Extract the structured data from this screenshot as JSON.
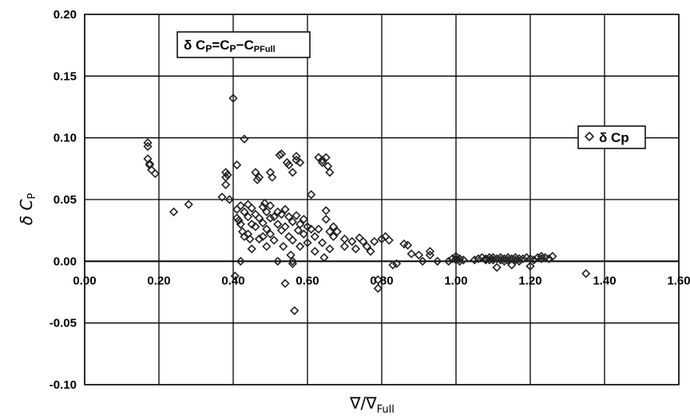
{
  "chart_data": {
    "type": "scatter",
    "xlabel": "∇/∇",
    "xlabel_sub": "Full",
    "ylabel": "δ C",
    "ylabel_sub": "P",
    "xlim": [
      0.0,
      1.6
    ],
    "ylim": [
      -0.1,
      0.2
    ],
    "xticks": [
      0.0,
      0.2,
      0.4,
      0.6,
      0.8,
      1.0,
      1.2,
      1.4,
      1.6
    ],
    "yticks": [
      -0.1,
      -0.05,
      0.0,
      0.05,
      0.1,
      0.15,
      0.2
    ],
    "xtick_labels": [
      "0.00",
      "0.20",
      "0.40",
      "0.60",
      "0.80",
      "1.00",
      "1.20",
      "1.40",
      "1.60"
    ],
    "ytick_labels": [
      "-0.10",
      "-0.05",
      "0.00",
      "0.05",
      "0.10",
      "0.15",
      "0.20"
    ],
    "grid": true,
    "marker_color": "#222222",
    "annotation": {
      "text_a": "δ C",
      "sub_a": "P",
      "text_b": "=C",
      "sub_b": "P",
      "text_c": "−C",
      "sub_c": "PFull"
    },
    "legend": {
      "position": "right",
      "label": "δ Cp",
      "marker": "diamond-open"
    },
    "series": [
      {
        "name": "δ Cp",
        "points": [
          [
            0.17,
            0.096
          ],
          [
            0.17,
            0.093
          ],
          [
            0.17,
            0.083
          ],
          [
            0.175,
            0.079
          ],
          [
            0.18,
            0.074
          ],
          [
            0.19,
            0.071
          ],
          [
            0.175,
            0.078
          ],
          [
            0.24,
            0.04
          ],
          [
            0.28,
            0.046
          ],
          [
            0.37,
            0.052
          ],
          [
            0.38,
            0.062
          ],
          [
            0.38,
            0.068
          ],
          [
            0.38,
            0.072
          ],
          [
            0.385,
            0.07
          ],
          [
            0.39,
            0.05
          ],
          [
            0.4,
            0.132
          ],
          [
            0.405,
            -0.012
          ],
          [
            0.41,
            0.078
          ],
          [
            0.41,
            0.042
          ],
          [
            0.41,
            0.035
          ],
          [
            0.415,
            0.033
          ],
          [
            0.42,
            0.045
          ],
          [
            0.42,
            0.03
          ],
          [
            0.42,
            0.0
          ],
          [
            0.425,
            0.024
          ],
          [
            0.43,
            0.04
          ],
          [
            0.43,
            0.02
          ],
          [
            0.43,
            0.099
          ],
          [
            0.44,
            0.046
          ],
          [
            0.44,
            0.036
          ],
          [
            0.44,
            0.022
          ],
          [
            0.445,
            0.018
          ],
          [
            0.45,
            0.043
          ],
          [
            0.45,
            0.03
          ],
          [
            0.45,
            0.01
          ],
          [
            0.46,
            0.072
          ],
          [
            0.46,
            0.038
          ],
          [
            0.46,
            0.028
          ],
          [
            0.465,
            0.066
          ],
          [
            0.47,
            0.035
          ],
          [
            0.47,
            0.018
          ],
          [
            0.47,
            0.068
          ],
          [
            0.48,
            0.044
          ],
          [
            0.48,
            0.031
          ],
          [
            0.48,
            0.02
          ],
          [
            0.485,
            0.047
          ],
          [
            0.49,
            0.04
          ],
          [
            0.49,
            0.026
          ],
          [
            0.49,
            0.012
          ],
          [
            0.5,
            0.072
          ],
          [
            0.5,
            0.045
          ],
          [
            0.5,
            0.035
          ],
          [
            0.5,
            0.022
          ],
          [
            0.505,
            0.068
          ],
          [
            0.51,
            0.036
          ],
          [
            0.51,
            0.017
          ],
          [
            0.52,
            0.04
          ],
          [
            0.52,
            0.03
          ],
          [
            0.52,
            0.0
          ],
          [
            0.525,
            0.086
          ],
          [
            0.53,
            0.087
          ],
          [
            0.53,
            0.038
          ],
          [
            0.53,
            0.025
          ],
          [
            0.535,
            0.012
          ],
          [
            0.54,
            0.042
          ],
          [
            0.54,
            0.028
          ],
          [
            0.54,
            -0.018
          ],
          [
            0.545,
            0.08
          ],
          [
            0.55,
            0.078
          ],
          [
            0.55,
            0.036
          ],
          [
            0.55,
            0.02
          ],
          [
            0.555,
            0.005
          ],
          [
            0.56,
            0.072
          ],
          [
            0.56,
            0.032
          ],
          [
            0.56,
            0.017
          ],
          [
            0.56,
            0.0
          ],
          [
            0.56,
            -0.002
          ],
          [
            0.565,
            -0.04
          ],
          [
            0.57,
            0.085
          ],
          [
            0.57,
            0.082
          ],
          [
            0.57,
            0.037
          ],
          [
            0.575,
            0.025
          ],
          [
            0.58,
            0.08
          ],
          [
            0.58,
            0.03
          ],
          [
            0.58,
            0.012
          ],
          [
            0.59,
            0.034
          ],
          [
            0.59,
            0.022
          ],
          [
            0.6,
            0.028
          ],
          [
            0.6,
            0.015
          ],
          [
            0.61,
            0.054
          ],
          [
            0.61,
            0.026
          ],
          [
            0.62,
            0.02
          ],
          [
            0.62,
            0.008
          ],
          [
            0.63,
            0.084
          ],
          [
            0.63,
            0.026
          ],
          [
            0.64,
            0.082
          ],
          [
            0.64,
            0.08
          ],
          [
            0.64,
            0.015
          ],
          [
            0.645,
            0.003
          ],
          [
            0.65,
            0.041
          ],
          [
            0.65,
            0.034
          ],
          [
            0.65,
            0.084
          ],
          [
            0.655,
            0.077
          ],
          [
            0.66,
            0.072
          ],
          [
            0.66,
            0.024
          ],
          [
            0.66,
            0.01
          ],
          [
            0.67,
            0.028
          ],
          [
            0.67,
            0.02
          ],
          [
            0.68,
            0.024
          ],
          [
            0.7,
            0.018
          ],
          [
            0.7,
            0.012
          ],
          [
            0.72,
            0.016
          ],
          [
            0.73,
            0.01
          ],
          [
            0.74,
            0.019
          ],
          [
            0.75,
            0.016
          ],
          [
            0.76,
            0.012
          ],
          [
            0.77,
            0.008
          ],
          [
            0.78,
            0.016
          ],
          [
            0.79,
            -0.022
          ],
          [
            0.79,
            -0.015
          ],
          [
            0.8,
            0.018
          ],
          [
            0.81,
            0.02
          ],
          [
            0.82,
            0.017
          ],
          [
            0.83,
            -0.003
          ],
          [
            0.84,
            -0.002
          ],
          [
            0.86,
            0.014
          ],
          [
            0.87,
            0.013
          ],
          [
            0.88,
            0.006
          ],
          [
            0.9,
            0.005
          ],
          [
            0.91,
            0.0
          ],
          [
            0.93,
            0.008
          ],
          [
            0.93,
            0.005
          ],
          [
            0.95,
            0.0
          ],
          [
            0.98,
            0.0
          ],
          [
            0.99,
            0.002
          ],
          [
            1.0,
            0.004
          ],
          [
            1.0,
            0.001
          ],
          [
            1.0,
            0.002
          ],
          [
            1.01,
            0.002
          ],
          [
            1.01,
            0.0
          ],
          [
            1.02,
            0.001
          ],
          [
            1.05,
            0.001
          ],
          [
            1.06,
            0.002
          ],
          [
            1.07,
            0.003
          ],
          [
            1.08,
            0.002
          ],
          [
            1.08,
            0.001
          ],
          [
            1.09,
            0.003
          ],
          [
            1.09,
            0.001
          ],
          [
            1.1,
            0.003
          ],
          [
            1.1,
            0.001
          ],
          [
            1.11,
            0.002
          ],
          [
            1.11,
            -0.005
          ],
          [
            1.12,
            0.003
          ],
          [
            1.12,
            0.001
          ],
          [
            1.13,
            0.002
          ],
          [
            1.13,
            0.0
          ],
          [
            1.14,
            0.003
          ],
          [
            1.14,
            0.001
          ],
          [
            1.15,
            0.002
          ],
          [
            1.15,
            -0.003
          ],
          [
            1.16,
            0.003
          ],
          [
            1.16,
            0.001
          ],
          [
            1.17,
            0.002
          ],
          [
            1.17,
            0.0
          ],
          [
            1.18,
            0.002
          ],
          [
            1.19,
            0.003
          ],
          [
            1.2,
            0.002
          ],
          [
            1.2,
            -0.004
          ],
          [
            1.21,
            0.001
          ],
          [
            1.22,
            0.003
          ],
          [
            1.23,
            0.002
          ],
          [
            1.23,
            0.004
          ],
          [
            1.24,
            0.003
          ],
          [
            1.25,
            0.002
          ],
          [
            1.26,
            0.004
          ],
          [
            1.35,
            -0.01
          ]
        ]
      }
    ]
  }
}
